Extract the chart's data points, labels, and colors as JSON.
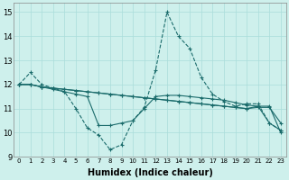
{
  "xlabel": "Humidex (Indice chaleur)",
  "xlim": [
    -0.5,
    23.5
  ],
  "ylim": [
    9,
    15.4
  ],
  "yticks": [
    9,
    10,
    11,
    12,
    13,
    14,
    15
  ],
  "xticks": [
    0,
    1,
    2,
    3,
    4,
    5,
    6,
    7,
    8,
    9,
    10,
    11,
    12,
    13,
    14,
    15,
    16,
    17,
    18,
    19,
    20,
    21,
    22,
    23
  ],
  "background_color": "#cef0ec",
  "grid_color": "#aaddda",
  "line_color": "#1a6b6b",
  "series": [
    {
      "style": "-",
      "data": [
        12.0,
        12.0,
        11.9,
        11.85,
        11.8,
        11.75,
        11.7,
        11.65,
        11.6,
        11.55,
        11.5,
        11.45,
        11.4,
        11.35,
        11.3,
        11.25,
        11.2,
        11.15,
        11.1,
        11.05,
        11.0,
        11.1,
        11.1,
        10.0
      ]
    },
    {
      "style": "-",
      "data": [
        12.0,
        12.0,
        11.9,
        11.85,
        11.8,
        11.75,
        11.7,
        11.65,
        11.6,
        11.55,
        11.5,
        11.45,
        11.4,
        11.35,
        11.3,
        11.25,
        11.2,
        11.15,
        11.1,
        11.05,
        11.0,
        11.05,
        11.05,
        10.4
      ]
    },
    {
      "style": "-",
      "data": [
        12.0,
        12.0,
        11.9,
        11.8,
        11.7,
        11.6,
        11.5,
        10.3,
        10.3,
        10.4,
        10.5,
        11.0,
        11.5,
        11.55,
        11.55,
        11.5,
        11.45,
        11.4,
        11.35,
        11.25,
        11.15,
        11.1,
        10.4,
        10.1
      ]
    },
    {
      "style": "--",
      "data": [
        12.0,
        12.5,
        12.0,
        11.85,
        11.7,
        11.0,
        10.2,
        9.9,
        9.3,
        9.5,
        10.5,
        11.05,
        12.6,
        15.0,
        14.0,
        13.5,
        12.3,
        11.6,
        11.3,
        11.1,
        11.2,
        11.2,
        10.4,
        10.1
      ]
    }
  ]
}
